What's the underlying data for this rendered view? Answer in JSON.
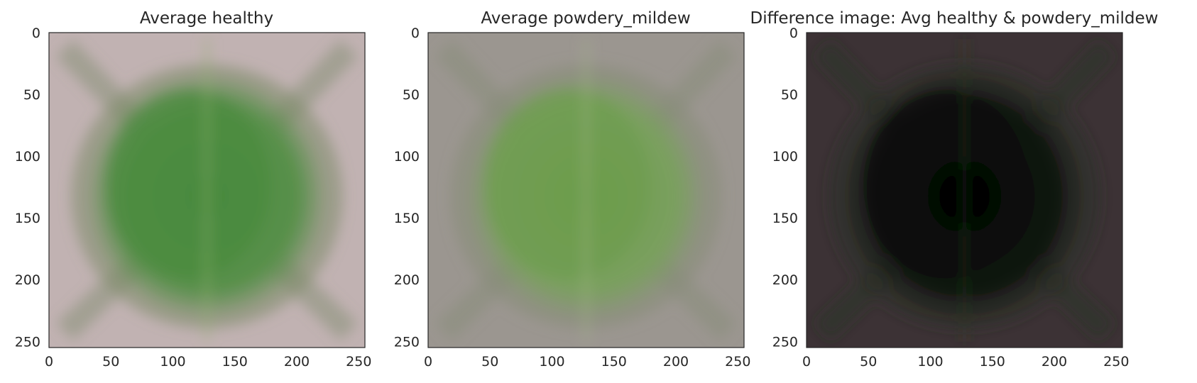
{
  "chart_data": [
    {
      "type": "heatmap",
      "title": "Average healthy",
      "x_ticks": [
        0,
        50,
        100,
        150,
        200,
        250
      ],
      "y_ticks": [
        0,
        50,
        100,
        150,
        200,
        250
      ],
      "xlim": [
        0,
        255
      ],
      "ylim": [
        255,
        0
      ],
      "colors": {
        "background": "#c1b2b2",
        "leaf": "#58904a",
        "leaf_center": "#4a8a3e",
        "shadow": "#7d8a6a",
        "vein": "#8fb070"
      }
    },
    {
      "type": "heatmap",
      "title": "Average powdery_mildew",
      "x_ticks": [
        0,
        50,
        100,
        150,
        200,
        250
      ],
      "y_ticks": [
        0,
        50,
        100,
        150,
        200,
        250
      ],
      "xlim": [
        0,
        255
      ],
      "ylim": [
        255,
        0
      ],
      "colors": {
        "background": "#9b9690",
        "leaf": "#7aa05e",
        "leaf_center": "#6c9c4c",
        "shadow": "#868c78",
        "vein": "#a4b888"
      }
    },
    {
      "type": "heatmap",
      "title": "Difference image: Avg healthy & powdery_mildew",
      "x_ticks": [
        0,
        50,
        100,
        150,
        200,
        250
      ],
      "y_ticks": [
        0,
        50,
        100,
        150,
        200,
        250
      ],
      "xlim": [
        0,
        255
      ],
      "ylim": [
        255,
        0
      ],
      "colors": {
        "background": "#3c3235",
        "leaf": "#101510",
        "leaf_center": "#050505",
        "shadow": "#283025",
        "vein": "#2a3a22"
      }
    }
  ]
}
